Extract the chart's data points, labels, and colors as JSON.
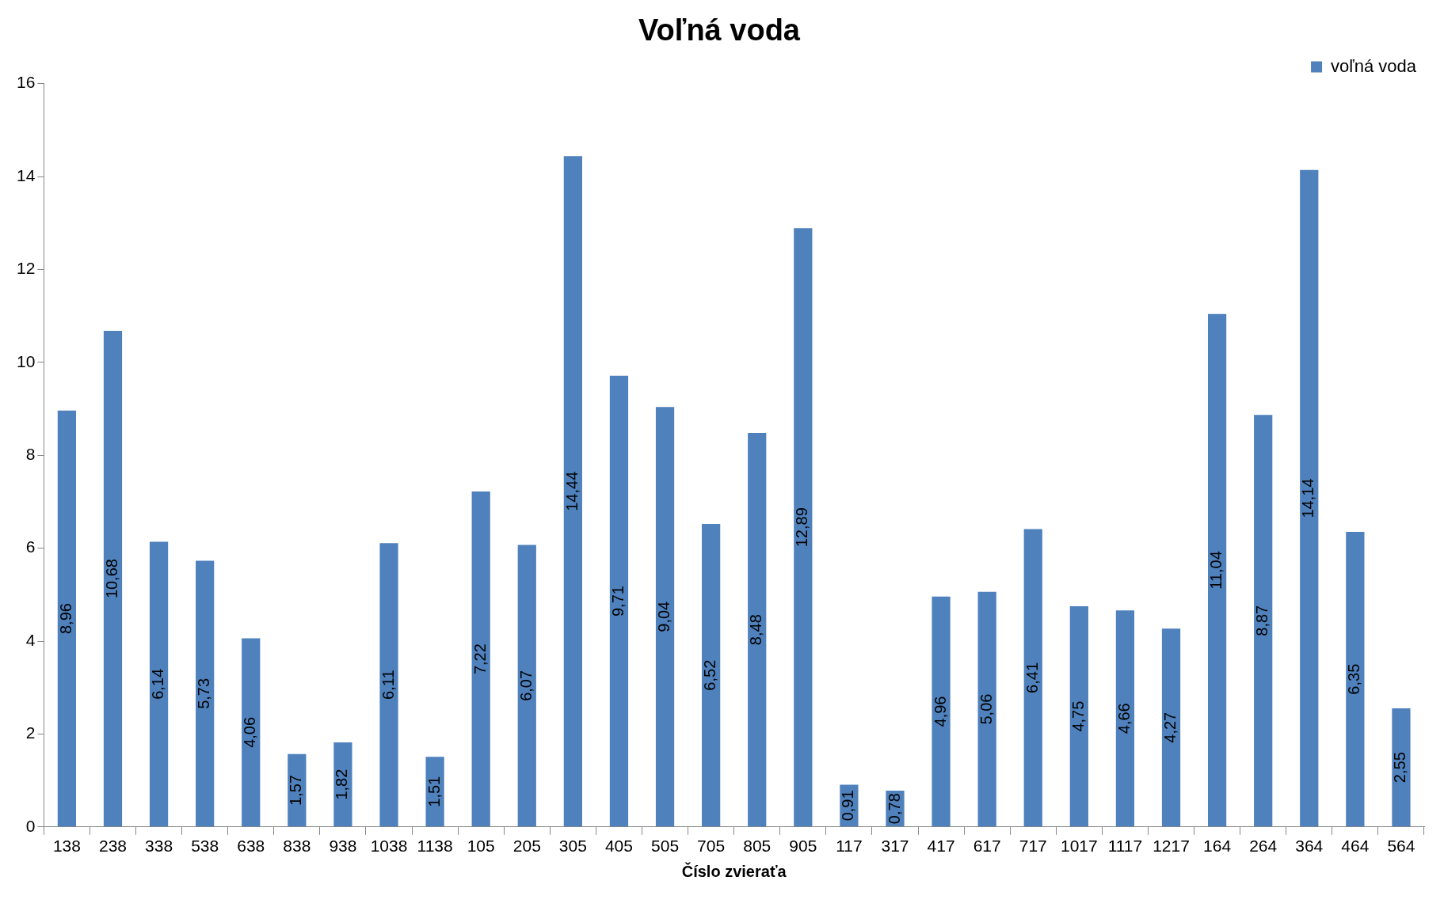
{
  "chart_data": {
    "type": "bar",
    "title": "Voľná voda",
    "xlabel": "Číslo zvieraťa",
    "categories": [
      "138",
      "238",
      "338",
      "538",
      "638",
      "838",
      "938",
      "1038",
      "1138",
      "105",
      "205",
      "305",
      "405",
      "505",
      "705",
      "805",
      "905",
      "117",
      "317",
      "417",
      "617",
      "717",
      "1017",
      "1117",
      "1217",
      "164",
      "264",
      "364",
      "464",
      "564"
    ],
    "series": [
      {
        "name": "voľná voda",
        "color": "#4f81bd",
        "values": [
          8.96,
          10.68,
          6.14,
          5.73,
          4.06,
          1.57,
          1.82,
          6.11,
          1.51,
          7.22,
          6.07,
          14.44,
          9.71,
          9.04,
          6.52,
          8.48,
          12.89,
          0.91,
          0.78,
          4.96,
          5.06,
          6.41,
          4.75,
          4.66,
          4.27,
          11.04,
          8.87,
          14.14,
          6.35,
          2.55
        ],
        "value_labels": [
          "8,96",
          "10,68",
          "6,14",
          "5,73",
          "4,06",
          "1,57",
          "1,82",
          "6,11",
          "1,51",
          "7,22",
          "6,07",
          "14,44",
          "9,71",
          "9,04",
          "6,52",
          "8,48",
          "12,89",
          "0,91",
          "0,78",
          "4,96",
          "5,06",
          "6,41",
          "4,75",
          "4,66",
          "4,27",
          "11,04",
          "8,87",
          "14,14",
          "6,35",
          "2,55"
        ]
      }
    ],
    "ylim": [
      0,
      16
    ],
    "yticks": [
      0,
      2,
      4,
      6,
      8,
      10,
      12,
      14,
      16
    ],
    "grid": false,
    "legend": "top right"
  }
}
